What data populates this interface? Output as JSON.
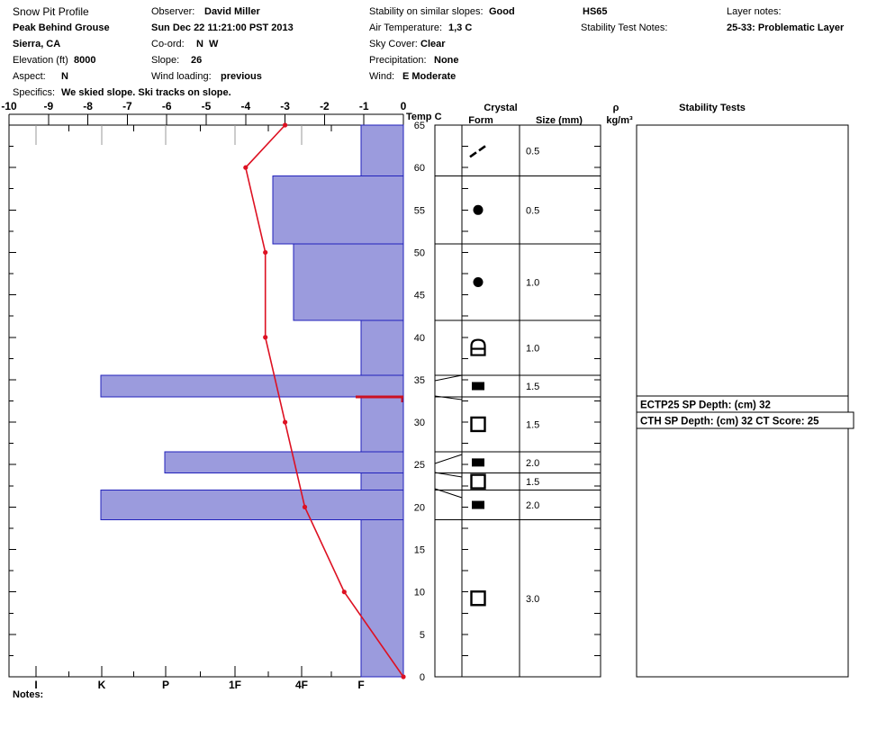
{
  "header": {
    "title": "Snow Pit Profile",
    "location": "Peak Behind Grouse",
    "region": "Sierra, CA",
    "elevation_label": "Elevation (ft)",
    "elevation_value": "8000",
    "aspect_label": "Aspect:",
    "aspect_value": "N",
    "specifics_label": "Specifics:",
    "specifics_value": "We skied slope. Ski tracks on slope.",
    "observer_label": "Observer:",
    "observer_value": "David Miller",
    "datetime": "Sun Dec 22 11:21:00 PST 2013",
    "coord_label": "Co-ord:",
    "coord_value": "N  W",
    "slope_label": "Slope:",
    "slope_value": "26",
    "wind_loading_label": "Wind loading:",
    "wind_loading_value": "previous",
    "stability_slopes_label": "Stability on similar slopes:",
    "stability_slopes_value": "Good",
    "air_temp_label": "Air Temperature:",
    "air_temp_value": "1,3 C",
    "sky_label": "Sky Cover:",
    "sky_value": "Clear",
    "precip_label": "Precipitation:",
    "precip_value": "None",
    "wind_label": "Wind:",
    "wind_value": "E Moderate",
    "hs_value": "HS65",
    "test_notes_label": "Stability Test Notes:",
    "layer_notes_label": "Layer notes:",
    "layer_notes_value": "25-33: Problematic Layer"
  },
  "notes_label": "Notes:",
  "chart_data": {
    "type": "snow-pit-profile",
    "temp_axis": {
      "label": "Temp C",
      "ticks": [
        -10,
        -9,
        -8,
        -7,
        -6,
        -5,
        -4,
        -3,
        -2,
        -1,
        0
      ],
      "range": [
        -10,
        0
      ]
    },
    "hardness_axis": {
      "categories": [
        "I",
        "K",
        "P",
        "1F",
        "4F",
        "F"
      ]
    },
    "depth_axis": {
      "unit": "cm",
      "min": 0,
      "max": 65,
      "label_step": 5,
      "minor_step": 2.5,
      "labels": [
        0,
        5,
        10,
        15,
        20,
        25,
        30,
        35,
        40,
        45,
        50,
        55,
        60,
        65
      ]
    },
    "temperature_profile": {
      "depths_cm": [
        65,
        60,
        50,
        40,
        30,
        20,
        10,
        0
      ],
      "temps_c": [
        -3.0,
        -4.0,
        -3.5,
        -3.5,
        -3.0,
        -2.5,
        -1.5,
        0.0
      ]
    },
    "layers": [
      {
        "top_cm": 65,
        "bottom_cm": 59,
        "hardness": "F",
        "form_symbol": "double-slash",
        "grain_size_mm": "0.5"
      },
      {
        "top_cm": 59,
        "bottom_cm": 51,
        "hardness": "1F-4F",
        "form_symbol": "filled-circle",
        "grain_size_mm": "0.5"
      },
      {
        "top_cm": 51,
        "bottom_cm": 42,
        "hardness": "4F",
        "form_symbol": "filled-circle",
        "grain_size_mm": "1.0"
      },
      {
        "top_cm": 42,
        "bottom_cm": 35.5,
        "hardness": "F",
        "form_symbol": "rounded-cap-square",
        "grain_size_mm": "1.0"
      },
      {
        "top_cm": 35.5,
        "bottom_cm": 33,
        "hardness": "K",
        "form_symbol": "filled-square",
        "grain_size_mm": "1.5"
      },
      {
        "top_cm": 33,
        "bottom_cm": 26.5,
        "hardness": "F",
        "form_symbol": "open-square",
        "grain_size_mm": "1.5"
      },
      {
        "top_cm": 26.5,
        "bottom_cm": 24,
        "hardness": "P",
        "form_symbol": "filled-square",
        "grain_size_mm": "2.0"
      },
      {
        "top_cm": 24,
        "bottom_cm": 22,
        "hardness": "F",
        "form_symbol": "open-square",
        "grain_size_mm": "1.5"
      },
      {
        "top_cm": 22,
        "bottom_cm": 18.5,
        "hardness": "K",
        "form_symbol": "filled-square",
        "grain_size_mm": "2.0"
      },
      {
        "top_cm": 18.5,
        "bottom_cm": 0,
        "hardness": "F",
        "form_symbol": "open-square",
        "grain_size_mm": "3.0"
      }
    ],
    "failure_plane_depth_cm": 33,
    "stability_tests": [
      "ECTP25 SP Depth: (cm) 32",
      "CTH SP Depth: (cm) 32 CT Score: 25"
    ],
    "panel_headers": {
      "crystal": "Crystal",
      "form": "Form",
      "size": "Size (mm)",
      "density_symbol": "ρ",
      "density_unit": "kg/m³",
      "stability": "Stability Tests"
    },
    "colors": {
      "bar_fill": "#9b9bdd",
      "bar_border": "#2121bb",
      "temp_line": "#dd1122",
      "failure_line": "#cc1122",
      "grid_gray": "#999999"
    }
  }
}
